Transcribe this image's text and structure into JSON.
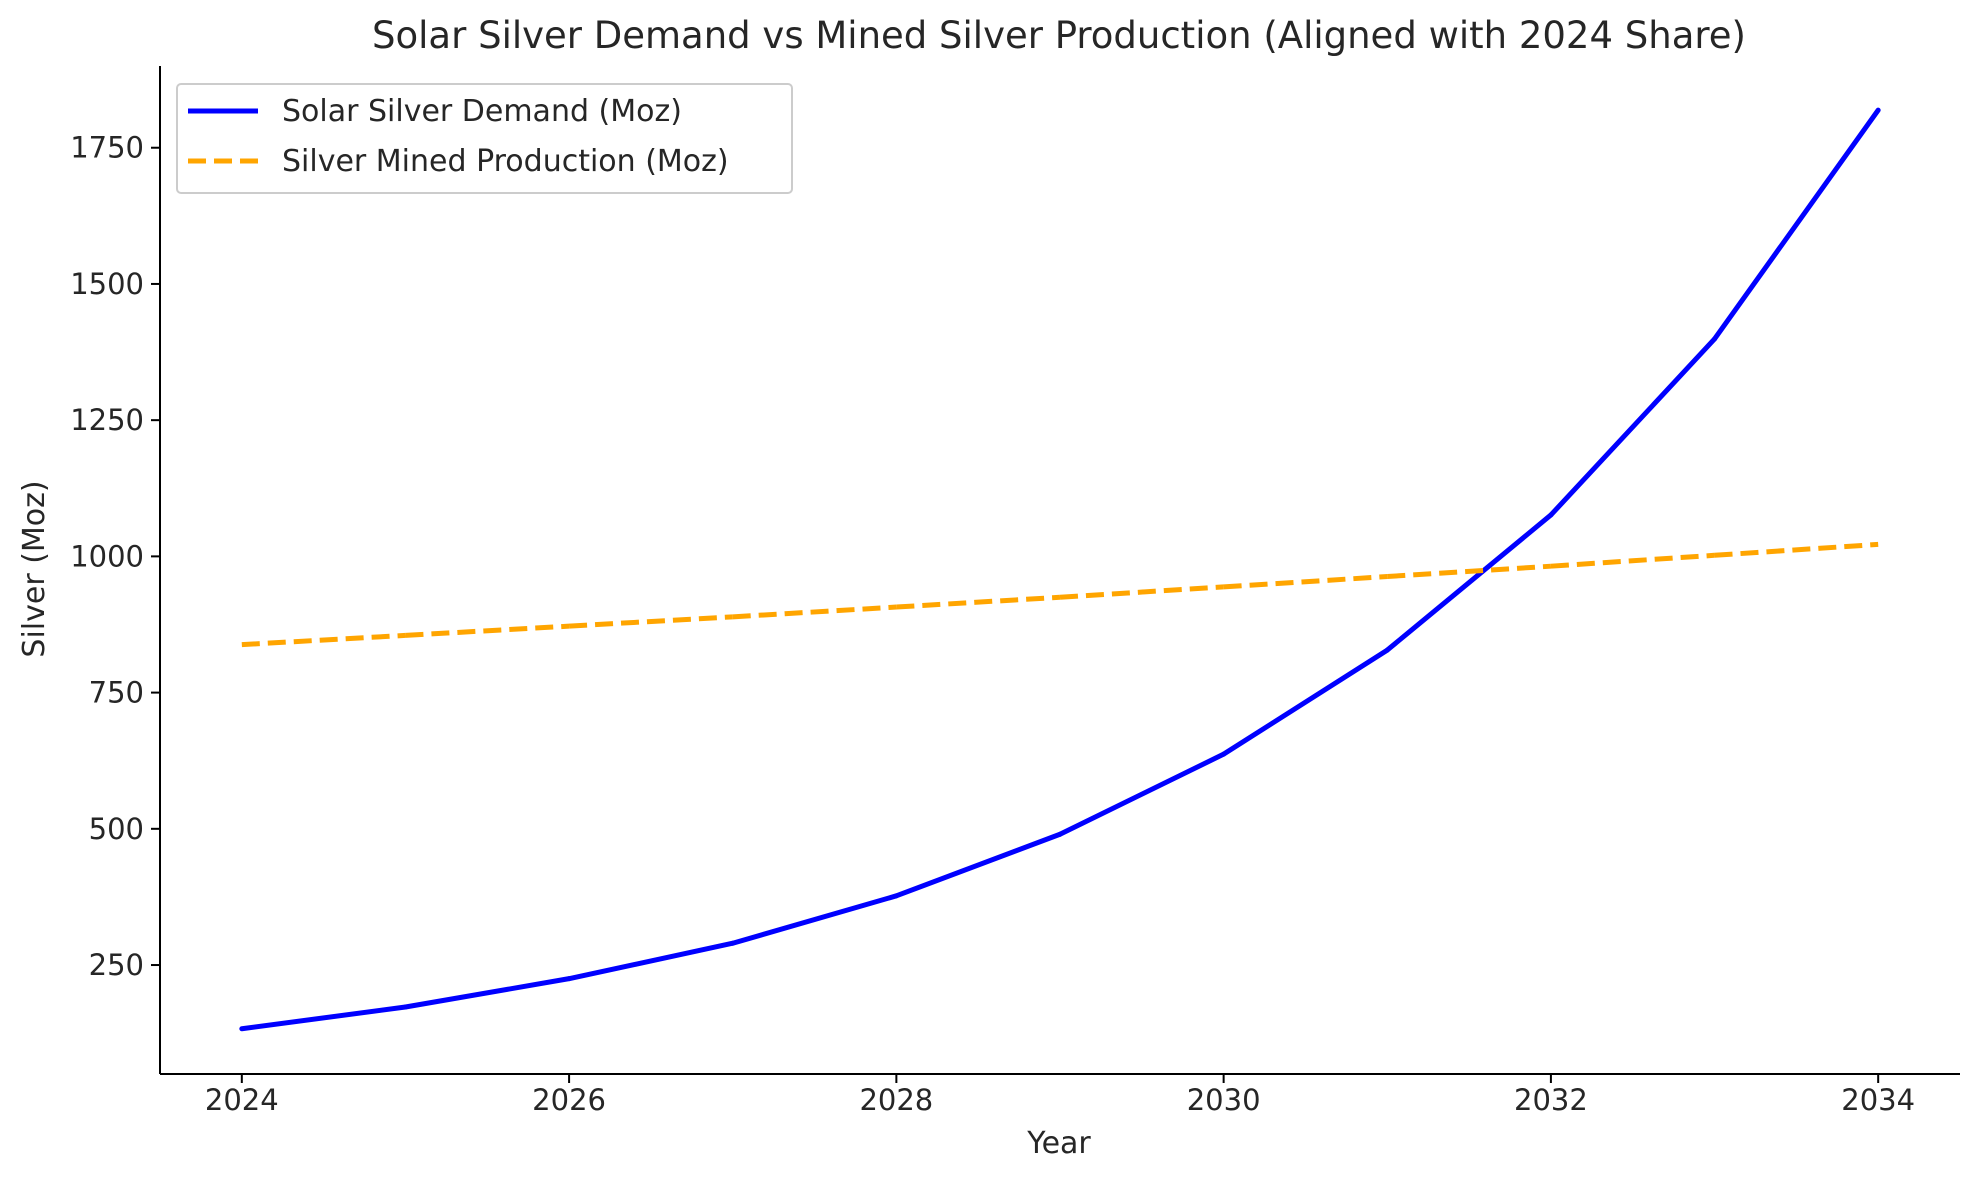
{
  "chart_data": {
    "type": "line",
    "title": "Solar Silver Demand vs Mined Silver Production (Aligned with 2024 Share)",
    "xlabel": "Year",
    "ylabel": "Silver (Moz)",
    "x": [
      2024,
      2025,
      2026,
      2027,
      2028,
      2029,
      2030,
      2031,
      2032,
      2033,
      2034
    ],
    "xlim": [
      2023.5,
      2034.5
    ],
    "ylim": [
      50,
      1900
    ],
    "x_ticks": [
      2024,
      2026,
      2028,
      2030,
      2032,
      2034
    ],
    "y_ticks": [
      250,
      500,
      750,
      1000,
      1250,
      1500,
      1750
    ],
    "grid": false,
    "legend_position": "top-left",
    "series": [
      {
        "name": "Solar Silver Demand (Moz)",
        "color": "#0000ff",
        "line_style": "solid",
        "values": [
          133,
          173,
          225,
          290,
          377,
          490,
          637,
          828,
          1076,
          1399,
          1819
        ]
      },
      {
        "name": "Silver Mined Production (Moz)",
        "color": "#ffa500",
        "line_style": "dashed",
        "values": [
          838,
          855,
          872,
          889,
          907,
          925,
          944,
          963,
          982,
          1002,
          1022
        ]
      }
    ]
  }
}
